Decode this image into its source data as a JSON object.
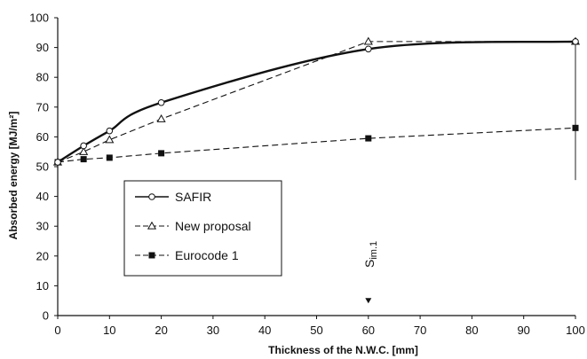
{
  "chart_data": {
    "type": "line",
    "xlabel": "Thickness of the N.W.C. [mm]",
    "ylabel": "Absorbed energy [MJ/m²]",
    "xlim": [
      0,
      100
    ],
    "ylim": [
      0,
      100
    ],
    "x_ticks": [
      0,
      10,
      20,
      30,
      40,
      50,
      60,
      70,
      80,
      90,
      100
    ],
    "y_ticks": [
      0,
      10,
      20,
      30,
      40,
      50,
      60,
      70,
      80,
      90,
      100
    ],
    "grid": false,
    "legend_position": "left-middle",
    "series": [
      {
        "name": "SAFIR",
        "marker": "open-circle",
        "line": "solid",
        "x": [
          0,
          5,
          10,
          20,
          60,
          100
        ],
        "y": [
          51.5,
          57,
          62,
          71.5,
          89.5,
          92
        ]
      },
      {
        "name": "New proposal",
        "marker": "open-triangle",
        "line": "dashed",
        "x": [
          0,
          5,
          10,
          20,
          60,
          100
        ],
        "y": [
          51.5,
          55,
          59,
          66,
          92,
          92
        ]
      },
      {
        "name": "Eurocode 1",
        "marker": "filled-square",
        "line": "dashed",
        "x": [
          0,
          5,
          10,
          20,
          60,
          100
        ],
        "y": [
          51.5,
          52.5,
          53,
          54.5,
          59.5,
          63
        ]
      }
    ],
    "annotations": [
      {
        "text": "Sim.1",
        "main": "S",
        "sub": "im.1",
        "x": 60,
        "arrow_y": 5
      }
    ]
  }
}
